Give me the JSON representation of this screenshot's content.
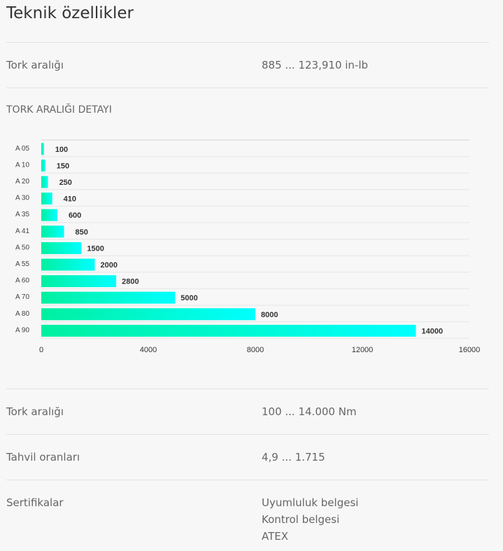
{
  "title": "Teknik özellikler",
  "rows": [
    {
      "label": "Tork aralığı",
      "value": "885 ... 123,910 in-lb"
    },
    {
      "label": "Tork aralığı",
      "value": "100 ... 14.000 Nm"
    },
    {
      "label": "Tahvil oranları",
      "value": "4,9 ... 1.715"
    },
    {
      "label": "Sertifikalar",
      "values": [
        "Uyumluluk belgesi",
        "Kontrol belgesi",
        "ATEX"
      ]
    }
  ],
  "chart_title": "TORK ARALIĞI DETAYI",
  "chart_data": {
    "type": "bar",
    "orientation": "horizontal",
    "categories": [
      "A 05",
      "A 10",
      "A 20",
      "A 30",
      "A 35",
      "A 41",
      "A 50",
      "A 55",
      "A 60",
      "A 70",
      "A 80",
      "A 90"
    ],
    "values": [
      100,
      150,
      250,
      410,
      600,
      850,
      1500,
      2000,
      2800,
      5000,
      8000,
      14000
    ],
    "xlim": [
      0,
      16000
    ],
    "xticks": [
      "0",
      "4000",
      "8000",
      "12000",
      "16000"
    ],
    "colors": {
      "start": "#00f0a0",
      "end": "#00ffff"
    }
  }
}
